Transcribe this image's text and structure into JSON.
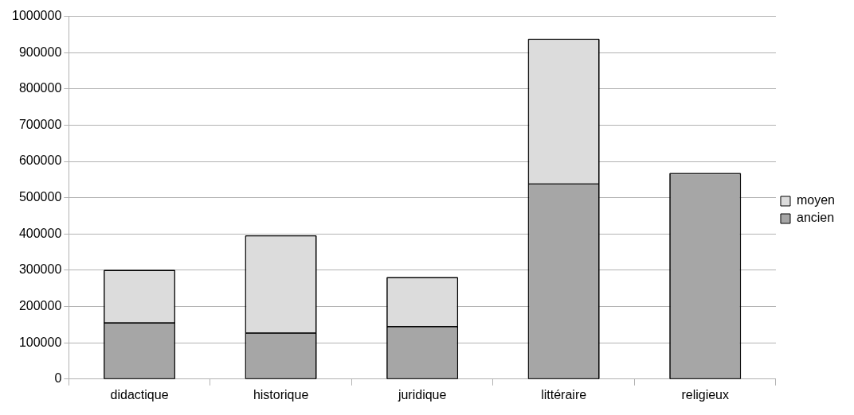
{
  "chart_data": {
    "type": "bar",
    "stacked": true,
    "categories": [
      "didactique",
      "historique",
      "juridique",
      "littéraire",
      "religieux"
    ],
    "series": [
      {
        "name": "ancien",
        "color": "#a6a6a6",
        "values": [
          155000,
          127000,
          145000,
          538000,
          567000
        ]
      },
      {
        "name": "moyen",
        "color": "#dcdcdc",
        "values": [
          145000,
          268000,
          135000,
          399000,
          null
        ]
      }
    ],
    "ylim": [
      0,
      1000000
    ],
    "yticks": [
      0,
      100000,
      200000,
      300000,
      400000,
      500000,
      600000,
      700000,
      800000,
      900000,
      1000000
    ],
    "grid": "y",
    "legend": "right"
  }
}
